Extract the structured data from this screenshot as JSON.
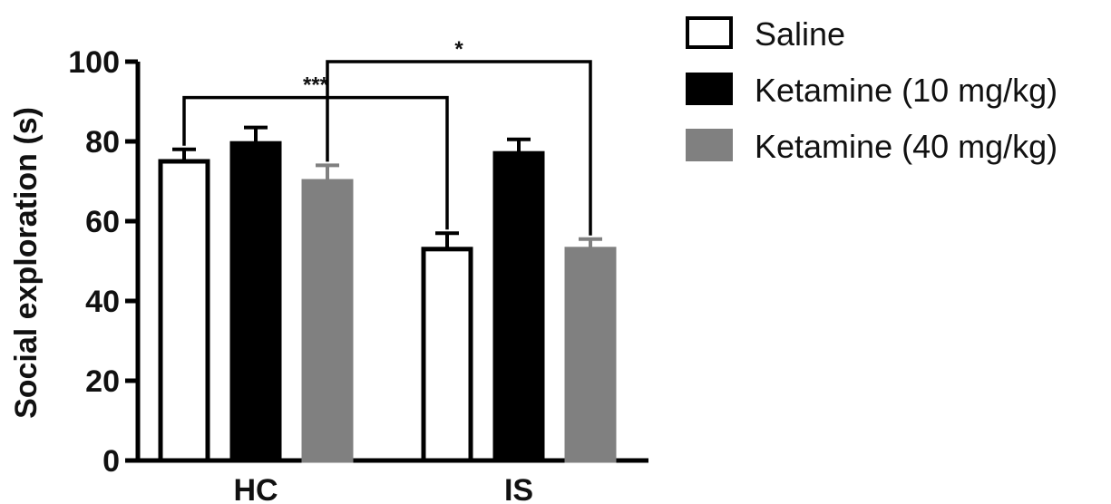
{
  "chart_data": {
    "type": "bar",
    "categories": [
      "HC",
      "IS"
    ],
    "ylabel": "Social exploration (s)",
    "xlabel": "",
    "ylim": [
      0,
      100
    ],
    "yticks": [
      0,
      20,
      40,
      60,
      80,
      100
    ],
    "grid": false,
    "legend_position": "top-right",
    "series": [
      {
        "name": "Saline",
        "values": [
          75,
          53
        ],
        "errors": [
          3,
          4
        ],
        "fill": "#ffffff",
        "stroke": "#000000"
      },
      {
        "name": "Ketamine (10 mg/kg)",
        "values": [
          79.5,
          77
        ],
        "errors": [
          4,
          3.5
        ],
        "fill": "#000000",
        "stroke": "#000000"
      },
      {
        "name": "Ketamine (40 mg/kg)",
        "values": [
          70,
          53
        ],
        "errors": [
          4,
          2.5
        ],
        "fill": "#808080",
        "stroke": "#808080"
      }
    ],
    "annotations": [
      {
        "label": "***",
        "from": {
          "category": 0,
          "series": 0
        },
        "to": {
          "category": 1,
          "series": 0
        },
        "level": 91
      },
      {
        "label": "*",
        "from": {
          "category": 0,
          "series": 2
        },
        "to": {
          "category": 1,
          "series": 2
        },
        "level": 100
      }
    ]
  }
}
